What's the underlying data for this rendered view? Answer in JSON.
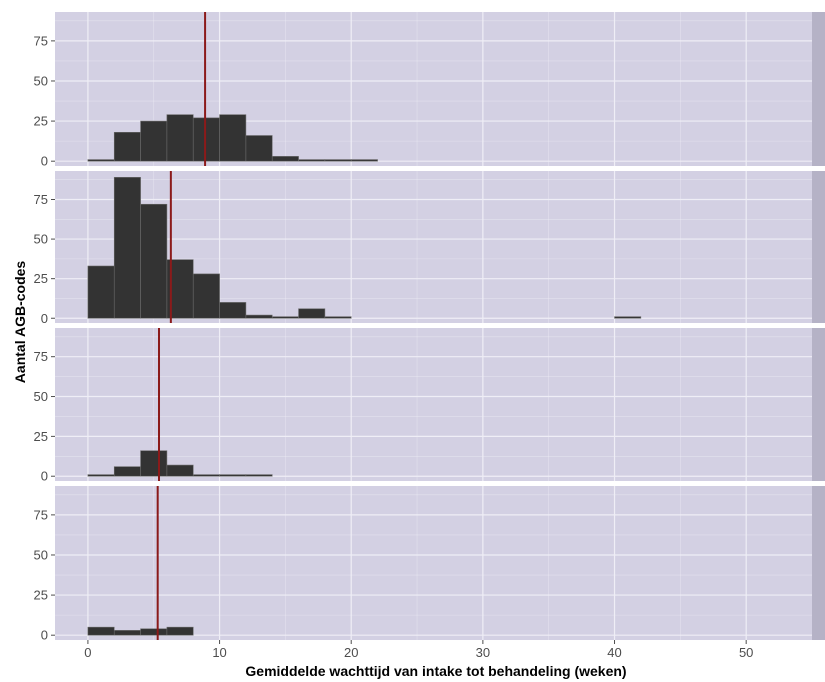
{
  "chart_data": {
    "type": "bar",
    "subtype": "faceted-histogram",
    "xlabel": "Gemiddelde wachttijd van intake tot behandeling (weken)",
    "ylabel": "Aantal AGB-codes",
    "xlim": [
      -2.5,
      55
    ],
    "ylim": [
      -3,
      93
    ],
    "x_ticks": [
      0,
      10,
      20,
      30,
      40,
      50
    ],
    "y_ticks": [
      0,
      25,
      50,
      75
    ],
    "bin_width": 2,
    "colors": {
      "panel_background": "#d3d0e3",
      "grid": "#efeef6",
      "bar_fill": "#333333",
      "bar_outline": "#6a6a6a",
      "reference_line": "#8b1a1a",
      "strip_background": "#b5b2c6"
    },
    "facets": [
      {
        "strip_label": "",
        "bins": [
          {
            "x0": 0,
            "x1": 2,
            "count": 1
          },
          {
            "x0": 2,
            "x1": 4,
            "count": 18
          },
          {
            "x0": 4,
            "x1": 6,
            "count": 25
          },
          {
            "x0": 6,
            "x1": 8,
            "count": 29
          },
          {
            "x0": 8,
            "x1": 10,
            "count": 27
          },
          {
            "x0": 10,
            "x1": 12,
            "count": 29
          },
          {
            "x0": 12,
            "x1": 14,
            "count": 16
          },
          {
            "x0": 14,
            "x1": 16,
            "count": 3
          },
          {
            "x0": 16,
            "x1": 18,
            "count": 1
          },
          {
            "x0": 18,
            "x1": 20,
            "count": 1
          },
          {
            "x0": 20,
            "x1": 22,
            "count": 1
          }
        ],
        "reference_line": 8.9
      },
      {
        "strip_label": "",
        "bins": [
          {
            "x0": 0,
            "x1": 2,
            "count": 33
          },
          {
            "x0": 2,
            "x1": 4,
            "count": 89
          },
          {
            "x0": 4,
            "x1": 6,
            "count": 72
          },
          {
            "x0": 6,
            "x1": 8,
            "count": 37
          },
          {
            "x0": 8,
            "x1": 10,
            "count": 28
          },
          {
            "x0": 10,
            "x1": 12,
            "count": 10
          },
          {
            "x0": 12,
            "x1": 14,
            "count": 2
          },
          {
            "x0": 14,
            "x1": 16,
            "count": 1
          },
          {
            "x0": 16,
            "x1": 18,
            "count": 6
          },
          {
            "x0": 18,
            "x1": 20,
            "count": 1
          },
          {
            "x0": 40,
            "x1": 42,
            "count": 1
          }
        ],
        "reference_line": 6.3
      },
      {
        "strip_label": "",
        "bins": [
          {
            "x0": 0,
            "x1": 2,
            "count": 1
          },
          {
            "x0": 2,
            "x1": 4,
            "count": 6
          },
          {
            "x0": 4,
            "x1": 6,
            "count": 16
          },
          {
            "x0": 6,
            "x1": 8,
            "count": 7
          },
          {
            "x0": 8,
            "x1": 10,
            "count": 1
          },
          {
            "x0": 10,
            "x1": 12,
            "count": 1
          },
          {
            "x0": 12,
            "x1": 14,
            "count": 1
          }
        ],
        "reference_line": 5.4
      },
      {
        "strip_label": "",
        "bins": [
          {
            "x0": 0,
            "x1": 2,
            "count": 5
          },
          {
            "x0": 2,
            "x1": 4,
            "count": 3
          },
          {
            "x0": 4,
            "x1": 6,
            "count": 4
          },
          {
            "x0": 6,
            "x1": 8,
            "count": 5
          }
        ],
        "reference_line": 5.3
      }
    ]
  }
}
